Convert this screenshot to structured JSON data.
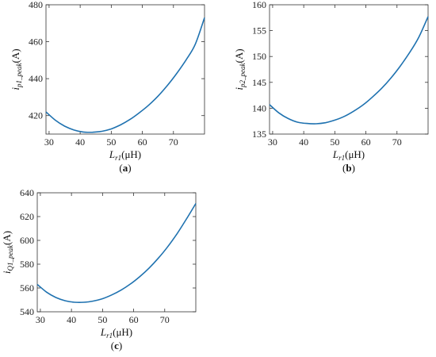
{
  "chart_data": [
    {
      "type": "line",
      "panel_label": "(a)",
      "xlabel": {
        "main": "L",
        "sub": "r1",
        "rest": "(μH)"
      },
      "ylabel": {
        "main": "i",
        "sub": "p1_peak",
        "rest": "(A)"
      },
      "xlim": [
        29,
        80
      ],
      "ylim": [
        410,
        480
      ],
      "xticks": [
        30,
        40,
        50,
        60,
        70
      ],
      "yticks": [
        420,
        440,
        460,
        480
      ],
      "color": "#1f72b0",
      "series": [
        {
          "x": [
            29,
            32,
            35,
            38,
            41,
            44,
            47,
            50,
            53,
            56,
            59,
            62,
            65,
            68,
            71,
            74,
            77,
            80
          ],
          "y": [
            422,
            417.5,
            414.3,
            412.2,
            411.1,
            411,
            411.5,
            412.8,
            415,
            417.9,
            421.5,
            425.6,
            430.5,
            436.2,
            442.7,
            450,
            458.5,
            473
          ]
        }
      ]
    },
    {
      "type": "line",
      "panel_label": "(b)",
      "xlabel": {
        "main": "L",
        "sub": "r1",
        "rest": "(μH)"
      },
      "ylabel": {
        "main": "i",
        "sub": "p2_peak",
        "rest": "(A)"
      },
      "xlim": [
        29,
        80
      ],
      "ylim": [
        135,
        160
      ],
      "xticks": [
        30,
        40,
        50,
        60,
        70
      ],
      "yticks": [
        135,
        140,
        145,
        150,
        155,
        160
      ],
      "color": "#1f72b0",
      "series": [
        {
          "x": [
            29,
            32,
            35,
            38,
            41,
            44,
            47,
            50,
            53,
            56,
            59,
            62,
            65,
            68,
            71,
            74,
            77,
            80
          ],
          "y": [
            140.7,
            139.1,
            138,
            137.3,
            137.05,
            137,
            137.2,
            137.7,
            138.4,
            139.4,
            140.6,
            142.1,
            143.8,
            145.8,
            148.1,
            150.7,
            153.7,
            157.7
          ]
        }
      ]
    },
    {
      "type": "line",
      "panel_label": "(c)",
      "xlabel": {
        "main": "L",
        "sub": "r1",
        "rest": "(μH)"
      },
      "ylabel": {
        "main": "i",
        "sub": "Q1_peak",
        "rest": "(A)"
      },
      "xlim": [
        29,
        80
      ],
      "ylim": [
        540,
        640
      ],
      "xticks": [
        30,
        40,
        50,
        60,
        70
      ],
      "yticks": [
        540,
        560,
        580,
        600,
        620,
        640
      ],
      "color": "#1f72b0",
      "series": [
        {
          "x": [
            29,
            32,
            35,
            38,
            41,
            44,
            47,
            50,
            53,
            56,
            59,
            62,
            65,
            68,
            71,
            74,
            77,
            80
          ],
          "y": [
            563,
            556.5,
            552,
            549.3,
            548,
            548,
            549,
            551,
            554.2,
            558.3,
            563.4,
            569.6,
            576.8,
            585.2,
            594.8,
            605.7,
            618,
            631
          ]
        }
      ]
    }
  ]
}
